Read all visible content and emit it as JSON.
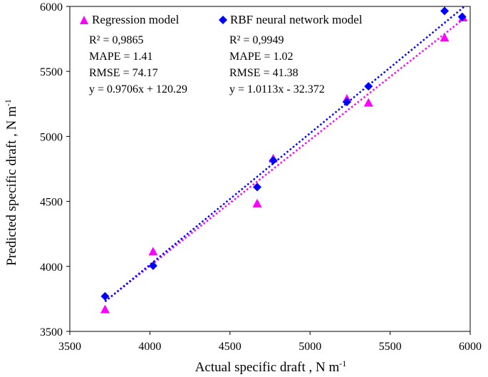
{
  "chart_data": {
    "type": "scatter",
    "xlabel": "Actual specific draft , N m",
    "xlabel_sup": "-1",
    "ylabel": "Predicted  specific draft , N m",
    "ylabel_sup": "-1",
    "xlim": [
      3500,
      6000
    ],
    "ylim": [
      3500,
      6000
    ],
    "xticks": [
      "3500",
      "4000",
      "4500",
      "5000",
      "5500",
      "6000"
    ],
    "yticks": [
      "3500",
      "4000",
      "4500",
      "5000",
      "5500",
      "6000"
    ],
    "legend_position": "top",
    "series": [
      {
        "name": "Regression model",
        "marker": "triangle",
        "color": "#ff00ff",
        "x": [
          3720,
          4020,
          4670,
          4770,
          5230,
          5365,
          5840,
          5955
        ],
        "y": [
          3670,
          4115,
          4485,
          4830,
          5290,
          5260,
          5760,
          5915
        ],
        "trendline": {
          "slope": 0.9706,
          "intercept": 120.29,
          "x_range": [
            3720,
            5960
          ]
        },
        "stats": {
          "r2": "R² = 0,9865",
          "mape": "MAPE = 1.41",
          "rmse": "RMSE = 74.17",
          "equation": "y = 0.9706x + 120.29"
        }
      },
      {
        "name": "RBF neural network model",
        "marker": "diamond",
        "color": "#0000ff",
        "x": [
          3720,
          4020,
          4670,
          4770,
          5230,
          5365,
          5840,
          5950
        ],
        "y": [
          3770,
          4005,
          4610,
          4815,
          5265,
          5385,
          5965,
          5920
        ],
        "trendline": {
          "slope": 1.0113,
          "intercept": -32.372,
          "x_range": [
            3720,
            5960
          ]
        },
        "stats": {
          "r2": "R² = 0,9949",
          "mape": "MAPE = 1.02",
          "rmse": "RMSE = 41.38",
          "equation": "y = 1.0113x - 32.372"
        }
      }
    ]
  }
}
